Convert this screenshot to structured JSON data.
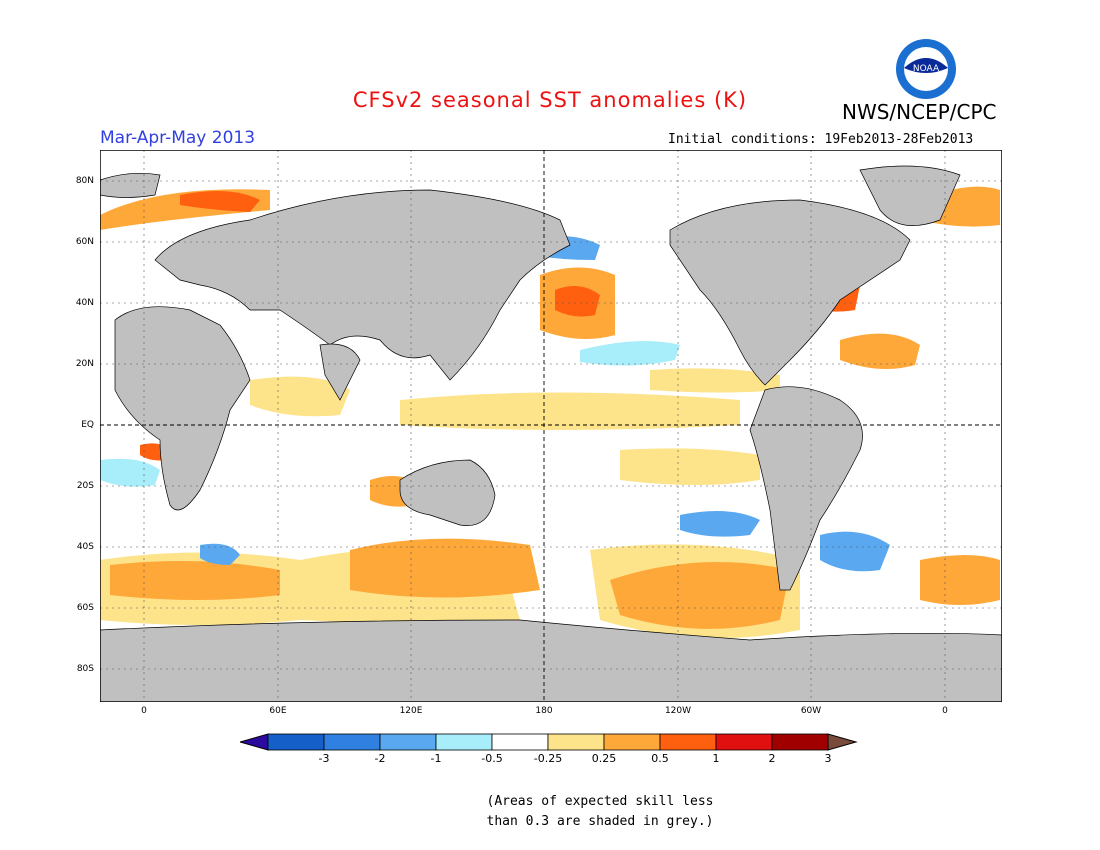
{
  "header": {
    "title": "CFSv2 seasonal SST anomalies (K)",
    "agency": "NWS/NCEP/CPC",
    "logo_text": "NOAA",
    "period": "Mar-Apr-May 2013",
    "initial_conditions": "Initial conditions: 19Feb2013-28Feb2013"
  },
  "map": {
    "lat_labels": [
      "80N",
      "60N",
      "40N",
      "20N",
      "EQ",
      "20S",
      "40S",
      "60S",
      "80S"
    ],
    "lon_labels": [
      "0",
      "60E",
      "120E",
      "180",
      "120W",
      "60W",
      "0"
    ],
    "colors": {
      "land": "#c0c0c0",
      "ocean": "#ffffff",
      "low_skill": "#c0c0c0"
    }
  },
  "colorbar": {
    "labels": [
      "-3",
      "-2",
      "-1",
      "-0.5",
      "-0.25",
      "0.25",
      "0.5",
      "1",
      "2",
      "3"
    ],
    "colors": [
      "#2b0a9e",
      "#1560c8",
      "#2f80e0",
      "#5aa8f0",
      "#a8eefa",
      "#ffffff",
      "#fde38a",
      "#ffa83a",
      "#ff6010",
      "#e01010",
      "#a00000",
      "#7a4a3a"
    ]
  },
  "note": {
    "line1": "(Areas of expected skill less",
    "line2": "than 0.3 are shaded in grey.)"
  }
}
